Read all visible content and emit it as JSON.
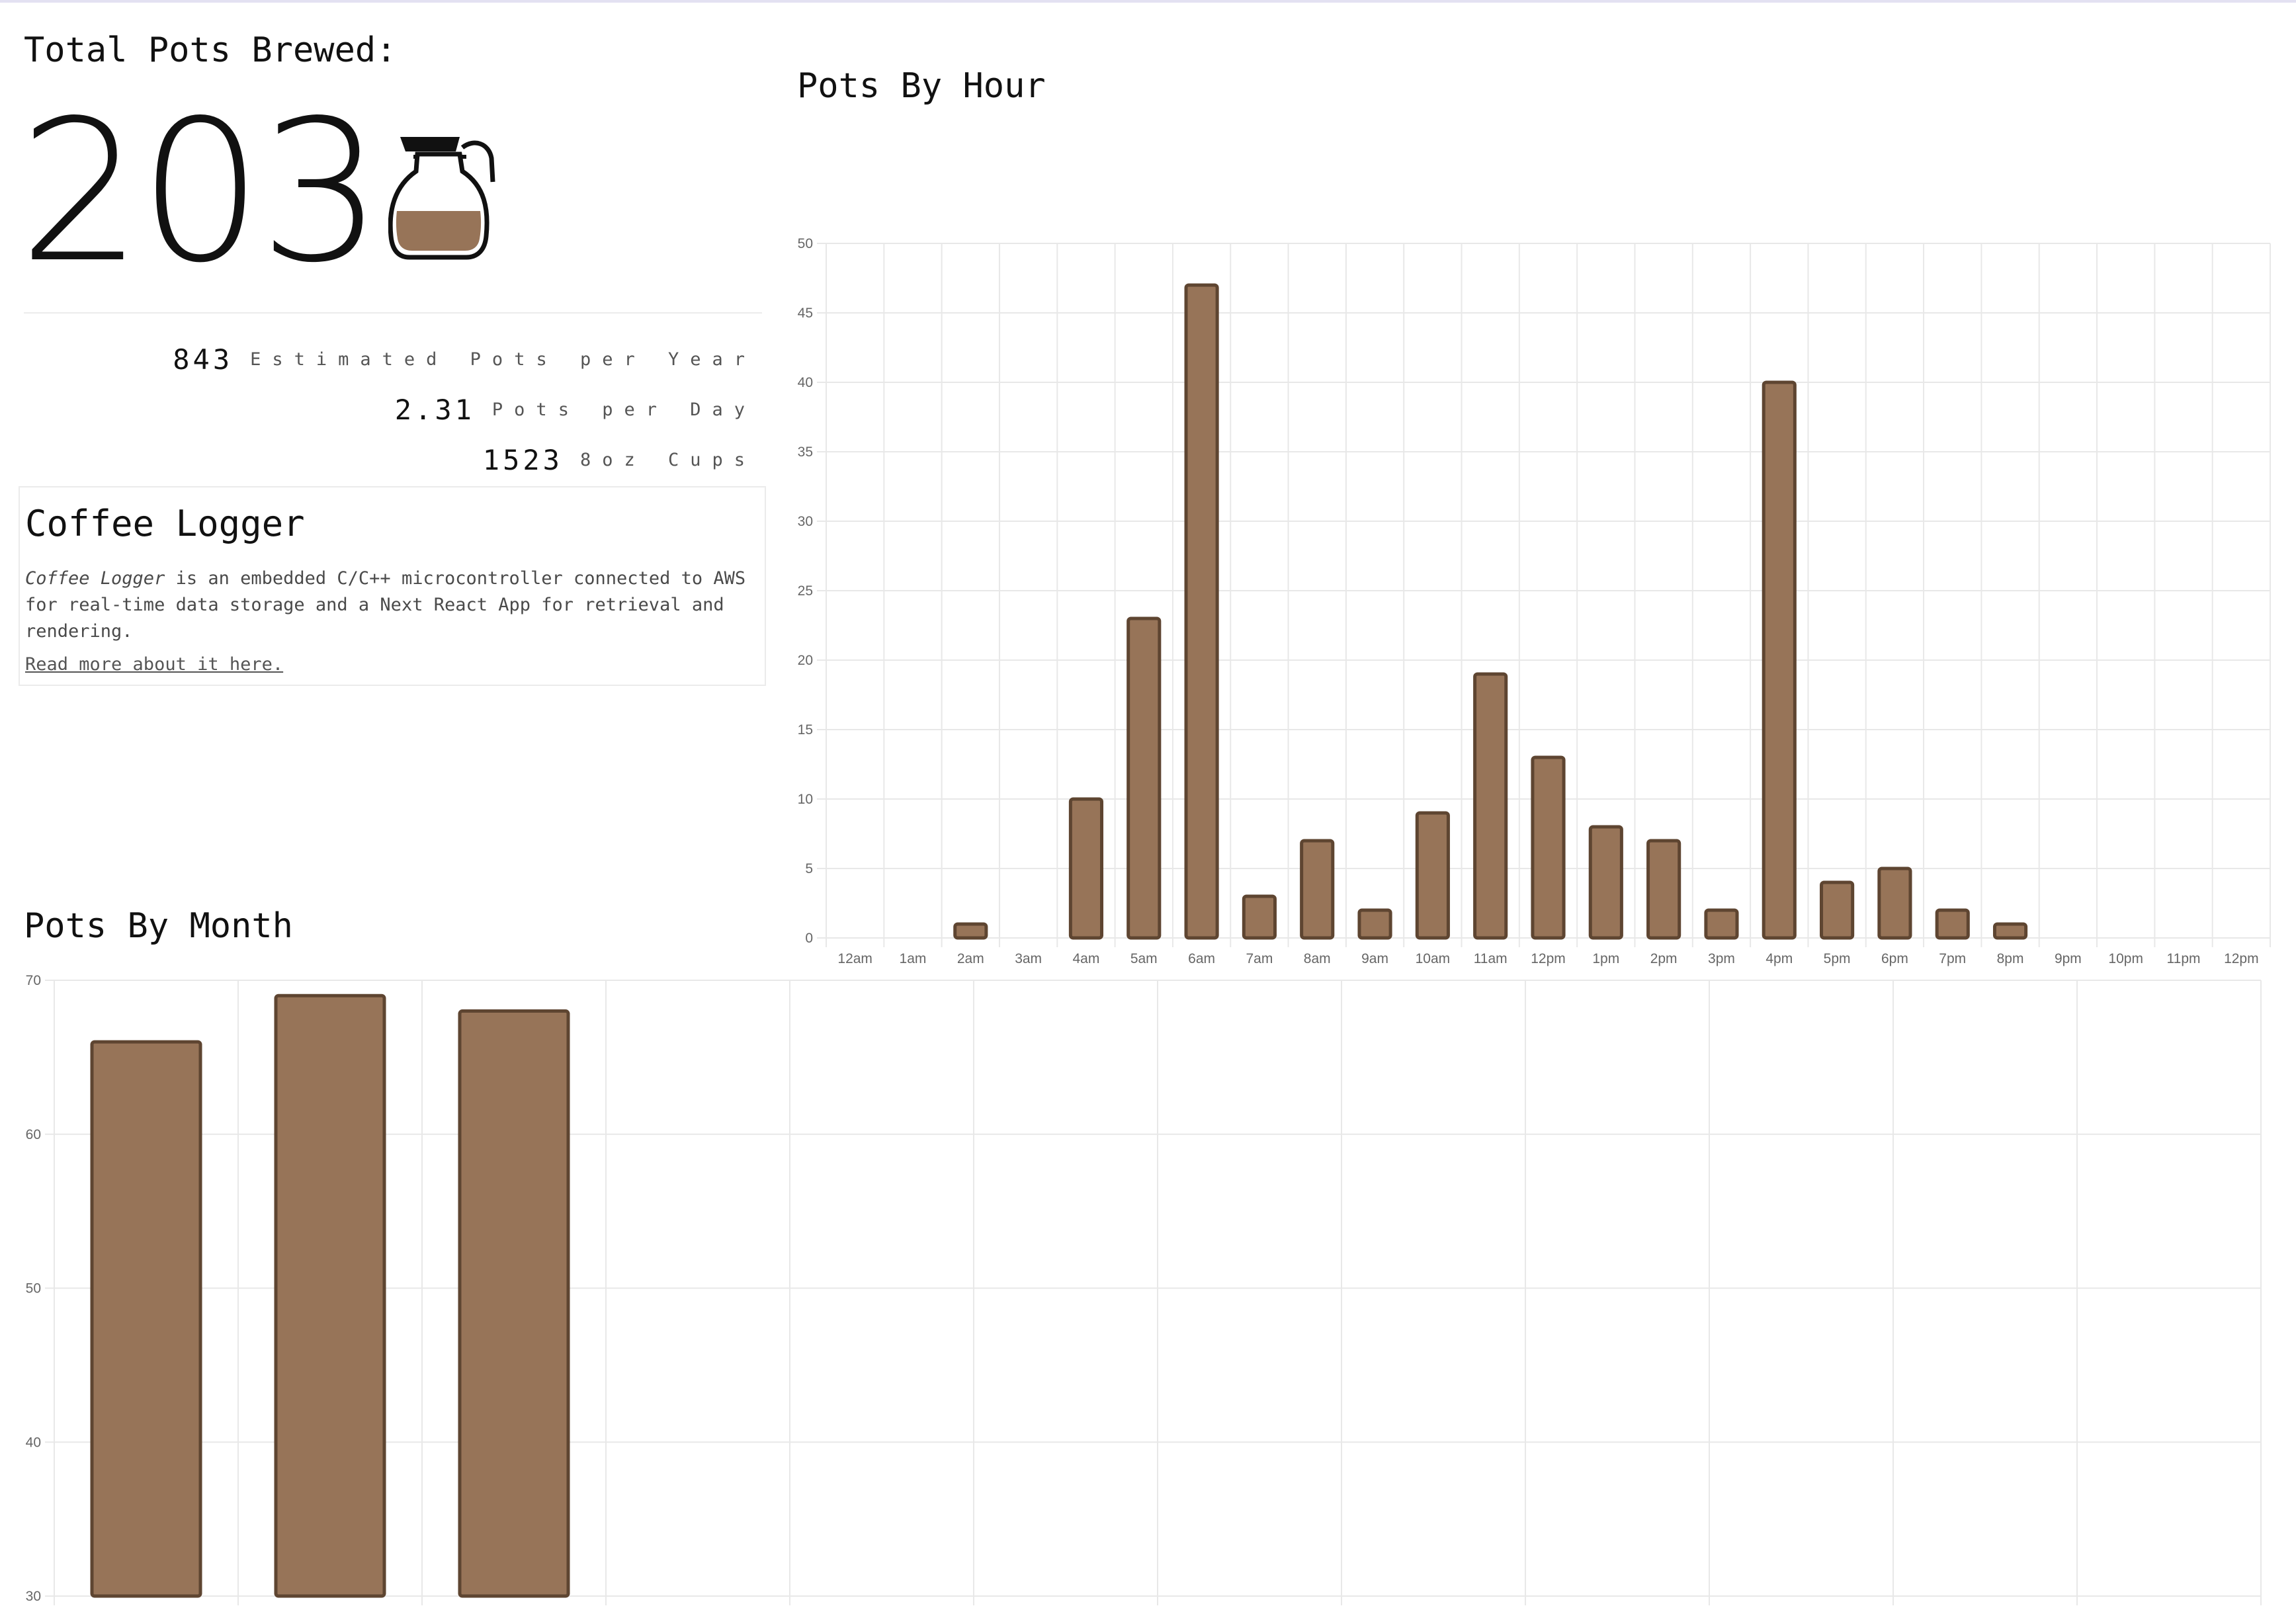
{
  "colors": {
    "bar_fill": "#977458",
    "bar_stroke": "#5e4531",
    "grid": "#e8e8e8",
    "accent_line": "#e3e1f2"
  },
  "summary": {
    "total_label": "Total Pots Brewed:",
    "total_value": "203",
    "pot_icon": "coffee-pot-icon"
  },
  "stats": [
    {
      "value": "843",
      "label": "Estimated Pots per Year"
    },
    {
      "value": "2.31",
      "label": "Pots per Day"
    },
    {
      "value": "1523",
      "label": "8oz Cups"
    }
  ],
  "about": {
    "title": "Coffee Logger",
    "name_em": "Coffee Logger",
    "description": " is an embedded C/C++ microcontroller connected to AWS for real-time data storage and a Next React App for retrieval and rendering.",
    "link_text": "Read more about it here."
  },
  "chart_data": [
    {
      "type": "bar",
      "title": "Pots By Hour",
      "categories": [
        "12am",
        "1am",
        "2am",
        "3am",
        "4am",
        "5am",
        "6am",
        "7am",
        "8am",
        "9am",
        "10am",
        "11am",
        "12pm",
        "1pm",
        "2pm",
        "3pm",
        "4pm",
        "5pm",
        "6pm",
        "7pm",
        "8pm",
        "9pm",
        "10pm",
        "11pm",
        "12pm"
      ],
      "values": [
        0,
        0,
        1,
        0,
        10,
        23,
        47,
        3,
        7,
        2,
        9,
        19,
        13,
        8,
        7,
        2,
        40,
        4,
        5,
        2,
        1,
        0,
        0,
        0,
        0
      ],
      "ylim": [
        0,
        50
      ],
      "yticks": [
        0,
        5,
        10,
        15,
        20,
        25,
        30,
        35,
        40,
        45,
        50
      ],
      "grid": true,
      "legend": "none"
    },
    {
      "type": "bar",
      "title": "Pots By Month",
      "categories": [
        "",
        "",
        "",
        "",
        "",
        "",
        "",
        "",
        "",
        "",
        "",
        ""
      ],
      "values": [
        66,
        69,
        68,
        null,
        null,
        null,
        null,
        null,
        null,
        null,
        null,
        null
      ],
      "yticks": [
        30,
        40,
        50,
        60,
        70
      ],
      "ylim": [
        30,
        70
      ],
      "grid": true,
      "legend": "none"
    }
  ]
}
